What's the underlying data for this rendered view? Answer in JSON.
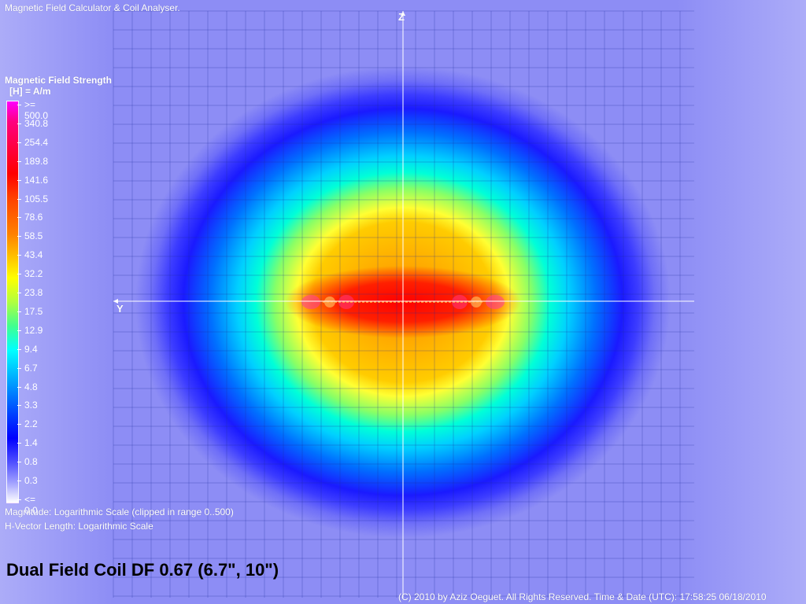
{
  "app": {
    "title": "Magnetic Field Calculator & Coil Analyser."
  },
  "legend": {
    "title": "Magnetic Field Strength",
    "unit": "[H] = A/m",
    "scale_labels": [
      ">= 500.0",
      "340.8",
      "254.4",
      "189.8",
      "141.6",
      "105.5",
      "78.6",
      "58.5",
      "43.4",
      "32.2",
      "23.8",
      "17.5",
      "12.9",
      "9.4",
      "6.7",
      "4.8",
      "3.3",
      "2.2",
      "1.4",
      "0.8",
      "0.3",
      "<= 0.0"
    ]
  },
  "notes": {
    "magnitude": "Magnitude: Logarithmic Scale (clipped in range 0..500)",
    "vector_length": "H-Vector Length: Logarithmic Scale"
  },
  "coil": {
    "title": "Dual Field Coil DF 0.67 (6.7\", 10\")"
  },
  "footer": {
    "copyright": "(C) 2010 by Aziz Oeguet. All Rights Reserved.  Time & Date (UTC): 17:58:25  06/18/2010"
  },
  "axes": {
    "vertical_label": "Z",
    "horizontal_label": "Y"
  },
  "colors": {
    "field_max": "#ff00ff",
    "field_high": "#ff0000",
    "field_mid": "#ffff00",
    "field_low": "#0000ff",
    "background": "#8d8df5"
  }
}
